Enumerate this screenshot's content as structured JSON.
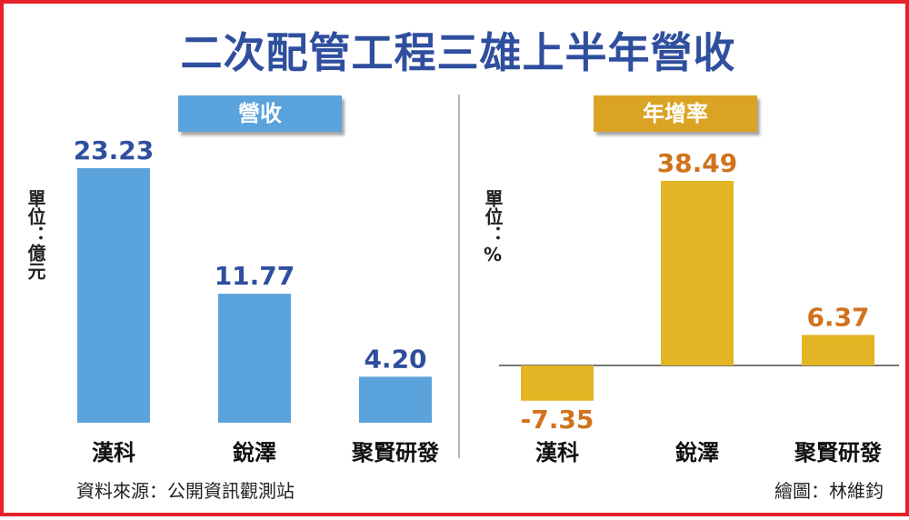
{
  "title": "二次配管工程三雄上半年營收",
  "source": "資料來源：公開資訊觀測站",
  "credit": "繪圖：林維鈞",
  "colors": {
    "title": "#2f4f9e",
    "revenue_bar": "#5ba3dc",
    "revenue_label": "#2f4f9e",
    "growth_bar": "#e3b423",
    "growth_label": "#d0731c",
    "frame": "#e8202a"
  },
  "chart_data": [
    {
      "type": "bar",
      "title": "營收",
      "ylabel": "單位：億元",
      "categories": [
        "漢科",
        "銳澤",
        "聚賢研發"
      ],
      "values": [
        23.23,
        11.77,
        4.2
      ],
      "value_labels": [
        "23.23",
        "11.77",
        "4.20"
      ],
      "ylim": [
        0,
        25
      ],
      "grid": false,
      "legend": "none"
    },
    {
      "type": "bar",
      "title": "年增率",
      "ylabel": "單位：%",
      "categories": [
        "漢科",
        "銳澤",
        "聚賢研發"
      ],
      "values": [
        -7.35,
        38.49,
        6.37
      ],
      "value_labels": [
        "-7.35",
        "38.49",
        "6.37"
      ],
      "ylim": [
        -10,
        40
      ],
      "grid": false,
      "legend": "none"
    }
  ]
}
